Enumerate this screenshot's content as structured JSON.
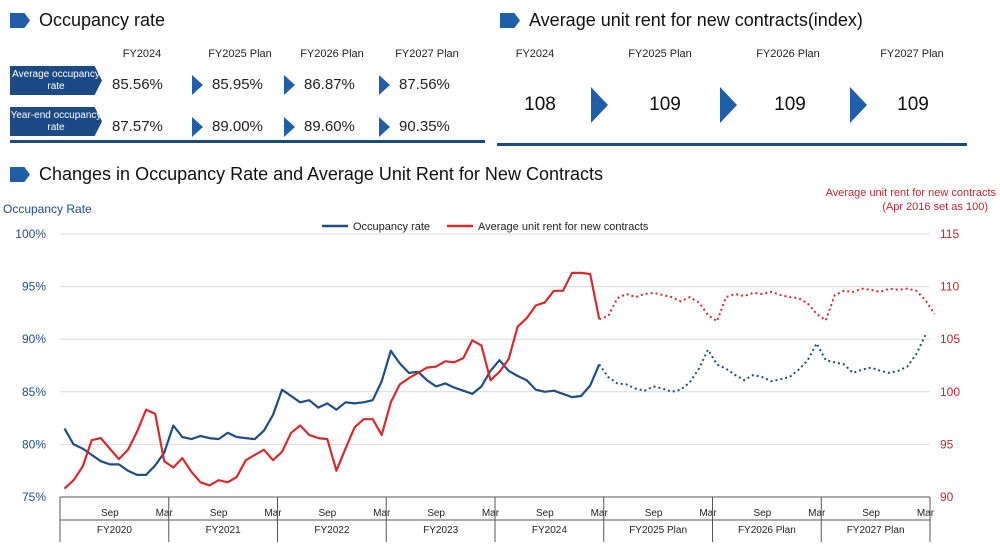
{
  "occupancy": {
    "title": "Occupancy rate",
    "columns": [
      "FY2024",
      "FY2025 Plan",
      "FY2026 Plan",
      "FY2027 Plan"
    ],
    "rows": [
      {
        "label": "Average occupancy rate",
        "values": [
          "85.56%",
          "85.95%",
          "86.87%",
          "87.56%"
        ]
      },
      {
        "label": "Year-end occupancy rate",
        "values": [
          "87.57%",
          "89.00%",
          "89.60%",
          "90.35%"
        ]
      }
    ]
  },
  "rent_index": {
    "title": "Average unit rent for new contracts(index)",
    "columns": [
      "FY2024",
      "FY2025 Plan",
      "FY2026 Plan",
      "FY2027 Plan"
    ],
    "values": [
      "108",
      "109",
      "109",
      "109"
    ]
  },
  "chart_section_title": "Changes in Occupancy Rate and Average Unit Rent for New Contracts",
  "chart_data": {
    "type": "line",
    "left_axis_label": "Occupancy Rate",
    "right_axis_label": [
      "Average unit rent for new contracts",
      "(Apr 2016 set as 100)"
    ],
    "left_ylim": [
      75,
      100
    ],
    "left_ticks": [
      "75%",
      "80%",
      "85%",
      "90%",
      "95%",
      "100%"
    ],
    "right_ylim": [
      90,
      115
    ],
    "right_ticks": [
      "90",
      "95",
      "100",
      "105",
      "110",
      "115"
    ],
    "month_tick_labels": [
      "Sep",
      "Mar"
    ],
    "fiscal_years": [
      "FY2020",
      "FY2021",
      "FY2022",
      "FY2023",
      "FY2024",
      "FY2025 Plan",
      "FY2026 Plan",
      "FY2027 Plan"
    ],
    "grid": "horizontal",
    "legend_position": "top-center",
    "series": [
      {
        "name": "Occupancy rate",
        "color": "#1f4e84",
        "axis": "left",
        "actual": [
          81.5,
          80.0,
          79.6,
          79.0,
          78.4,
          78.1,
          78.1,
          77.5,
          77.1,
          77.1,
          78.0,
          79.2,
          81.8,
          80.7,
          80.5,
          80.8,
          80.6,
          80.5,
          81.1,
          80.7,
          80.6,
          80.5,
          81.3,
          82.8,
          85.2,
          84.6,
          84.0,
          84.2,
          83.5,
          83.9,
          83.3,
          84.0,
          83.9,
          84.0,
          84.2,
          86.0,
          88.9,
          87.7,
          86.8,
          86.9,
          86.1,
          85.5,
          85.8,
          85.4,
          85.1,
          84.8,
          85.5,
          87.0,
          88.0,
          87.0,
          86.5,
          86.1,
          85.2,
          85.0,
          85.1,
          84.8,
          84.5,
          84.6,
          85.6,
          87.6
        ],
        "plan": [
          86.4,
          85.8,
          85.7,
          85.3,
          85.1,
          85.5,
          85.3,
          85.0,
          85.2,
          85.9,
          87.2,
          89.0,
          87.6,
          87.2,
          86.6,
          86.1,
          86.6,
          86.4,
          86.0,
          86.2,
          86.4,
          87.1,
          88.0,
          89.6,
          88.0,
          87.8,
          87.6,
          86.8,
          87.1,
          87.3,
          87.0,
          86.8,
          87.0,
          87.4,
          88.6,
          90.4
        ]
      },
      {
        "name": "Average unit rent for new contracts",
        "color": "#d62b2b",
        "axis": "right",
        "actual": [
          90.8,
          91.6,
          92.9,
          95.4,
          95.6,
          94.6,
          93.6,
          94.5,
          96.2,
          98.3,
          97.9,
          93.4,
          92.8,
          93.7,
          92.4,
          91.4,
          91.1,
          91.6,
          91.4,
          91.9,
          93.5,
          94.0,
          94.5,
          93.5,
          94.3,
          96.1,
          96.8,
          95.9,
          95.6,
          95.5,
          92.5,
          94.6,
          96.6,
          97.4,
          97.4,
          95.9,
          99.0,
          100.7,
          101.3,
          101.8,
          102.3,
          102.4,
          102.9,
          102.8,
          103.2,
          104.9,
          104.4,
          101.1,
          101.9,
          103.1,
          106.2,
          107.0,
          108.2,
          108.5,
          109.6,
          109.6,
          111.3,
          111.3,
          111.2,
          106.9
        ],
        "plan": [
          107.2,
          108.9,
          109.3,
          109.0,
          109.3,
          109.4,
          109.2,
          109.0,
          108.6,
          109.0,
          108.5,
          107.3,
          106.7,
          109.0,
          109.3,
          109.1,
          109.4,
          109.3,
          109.5,
          109.2,
          109.0,
          108.9,
          108.4,
          107.4,
          106.8,
          109.2,
          109.6,
          109.5,
          109.8,
          109.7,
          109.5,
          109.8,
          109.7,
          109.8,
          109.6,
          108.7,
          107.4
        ]
      }
    ]
  }
}
